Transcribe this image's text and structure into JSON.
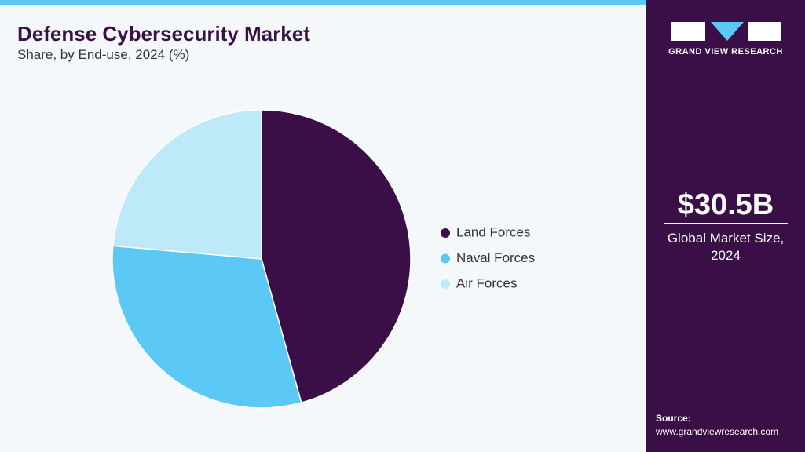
{
  "chart_data": {
    "type": "pie",
    "title": "Defense Cybersecurity Market",
    "subtitle": "Share, by End-use, 2024 (%)",
    "categories": [
      "Land Forces",
      "Naval Forces",
      "Air Forces"
    ],
    "values": [
      45.7,
      30.7,
      23.6
    ],
    "colors": [
      "#3a0f47",
      "#5bc8f5",
      "#bde9f8"
    ],
    "legend": "right"
  },
  "panel": {
    "brand": "GRAND VIEW RESEARCH",
    "market_size": "$30.5B",
    "market_size_label": "Global Market Size, 2024",
    "source_label": "Source:",
    "source_url": "www.grandviewresearch.com"
  }
}
